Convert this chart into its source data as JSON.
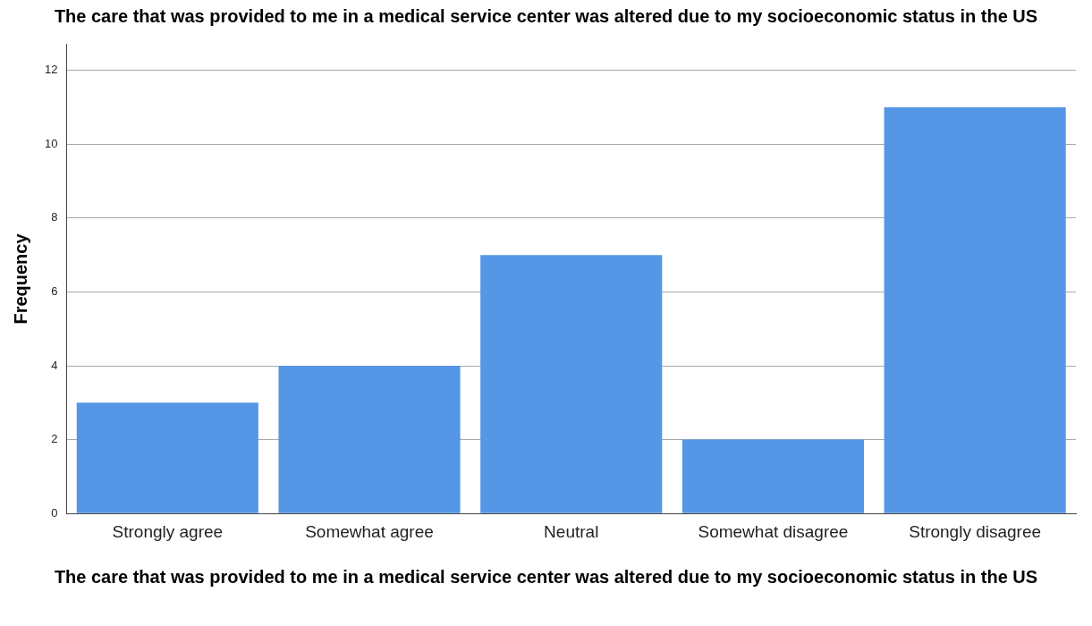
{
  "chart_data": {
    "type": "bar",
    "title": "The care that was provided to me in a medical service center was altered due to my socioeconomic status in the US",
    "xlabel": "The care that was provided to me in a medical service center was altered due to my socioeconomic status in the US",
    "ylabel": "Frequency",
    "categories": [
      "Strongly agree",
      "Somewhat agree",
      "Neutral",
      "Somewhat disagree",
      "Strongly disagree"
    ],
    "values": [
      3,
      4,
      7,
      2,
      11
    ],
    "color": "#5596e6",
    "ylim": [
      0,
      12.7
    ],
    "yticks": [
      0,
      2,
      4,
      6,
      8,
      10,
      12
    ],
    "grid": "y",
    "legend": false
  }
}
